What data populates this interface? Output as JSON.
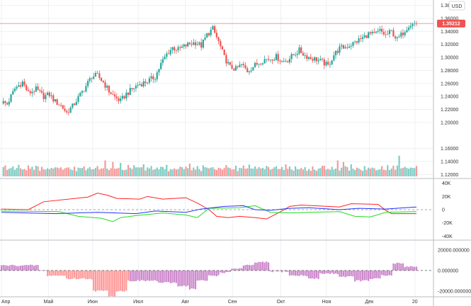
{
  "currency_label": "USD",
  "last_price_label": "1.35212",
  "colors": {
    "up": "#26a69a",
    "down": "#ef5350",
    "vol_up": "#7ecdc4",
    "vol_down": "#f59a9a",
    "cot_red": "#ff2222",
    "cot_green": "#22dd22",
    "cot_blue": "#2233ff",
    "net_pos": "#cc88cc",
    "net_neg": "#ff9999",
    "price_line": "#f28a8a",
    "grid": "#eef0f3"
  },
  "chart_data": [
    {
      "type": "candlestick",
      "panel": "price",
      "x_labels": [
        "Апр",
        "Май",
        "Июн",
        "Июл",
        "Авг",
        "Сен",
        "Окт",
        "Ноя",
        "Дек",
        "20"
      ],
      "y_ticks": [
        "1.38000",
        "1.36000",
        "1.34000",
        "1.32000",
        "1.30000",
        "1.28000",
        "1.26000",
        "1.24000",
        "1.22000",
        "1.20000",
        "1.16000",
        "1.14000",
        "1.12000"
      ],
      "ylim": [
        1.115,
        1.385
      ],
      "last_price": 1.35212,
      "close_anchors": [
        [
          0,
          1.232
        ],
        [
          3,
          1.228
        ],
        [
          7,
          1.252
        ],
        [
          11,
          1.262
        ],
        [
          14,
          1.245
        ],
        [
          18,
          1.251
        ],
        [
          22,
          1.24
        ],
        [
          25,
          1.243
        ],
        [
          28,
          1.232
        ],
        [
          31,
          1.226
        ],
        [
          34,
          1.215
        ],
        [
          37,
          1.225
        ],
        [
          40,
          1.238
        ],
        [
          44,
          1.256
        ],
        [
          47,
          1.271
        ],
        [
          50,
          1.272
        ],
        [
          53,
          1.262
        ],
        [
          56,
          1.248
        ],
        [
          59,
          1.239
        ],
        [
          62,
          1.233
        ],
        [
          65,
          1.244
        ],
        [
          68,
          1.251
        ],
        [
          71,
          1.258
        ],
        [
          74,
          1.261
        ],
        [
          77,
          1.265
        ],
        [
          80,
          1.27
        ],
        [
          83,
          1.29
        ],
        [
          86,
          1.305
        ],
        [
          89,
          1.315
        ],
        [
          92,
          1.312
        ],
        [
          95,
          1.317
        ],
        [
          98,
          1.321
        ],
        [
          101,
          1.323
        ],
        [
          104,
          1.318
        ],
        [
          107,
          1.335
        ],
        [
          110,
          1.344
        ],
        [
          113,
          1.324
        ],
        [
          116,
          1.3
        ],
        [
          119,
          1.285
        ],
        [
          122,
          1.282
        ],
        [
          125,
          1.289
        ],
        [
          128,
          1.279
        ],
        [
          131,
          1.286
        ],
        [
          134,
          1.292
        ],
        [
          137,
          1.297
        ],
        [
          140,
          1.298
        ],
        [
          143,
          1.301
        ],
        [
          146,
          1.294
        ],
        [
          149,
          1.296
        ],
        [
          152,
          1.304
        ],
        [
          155,
          1.311
        ],
        [
          158,
          1.303
        ],
        [
          161,
          1.299
        ],
        [
          164,
          1.297
        ],
        [
          167,
          1.293
        ],
        [
          170,
          1.287
        ],
        [
          173,
          1.304
        ],
        [
          176,
          1.314
        ],
        [
          179,
          1.316
        ],
        [
          182,
          1.32
        ],
        [
          185,
          1.325
        ],
        [
          188,
          1.33
        ],
        [
          191,
          1.336
        ],
        [
          194,
          1.335
        ],
        [
          197,
          1.341
        ],
        [
          200,
          1.334
        ],
        [
          203,
          1.34
        ],
        [
          206,
          1.327
        ],
        [
          209,
          1.338
        ],
        [
          212,
          1.35
        ],
        [
          215,
          1.352
        ]
      ]
    },
    {
      "type": "bar",
      "panel": "volume",
      "values_pattern": [
        0.55,
        0.48,
        0.62,
        0.4,
        0.5,
        0.45,
        0.58,
        0.52,
        0.43,
        0.6,
        0.47,
        0.53
      ],
      "spikes": [
        [
          54,
          1.0
        ],
        [
          58,
          0.9
        ],
        [
          62,
          0.85
        ],
        [
          98,
          0.8
        ],
        [
          148,
          0.75
        ],
        [
          175,
          1.0
        ],
        [
          178,
          0.9
        ],
        [
          207,
          1.3
        ],
        [
          210,
          0.6
        ]
      ]
    },
    {
      "type": "line",
      "panel": "cot",
      "y_ticks": [
        "40K",
        "20K",
        "0",
        "-20K",
        "-40K"
      ],
      "ylim": [
        -45000,
        45000
      ],
      "series": [
        {
          "key": "red",
          "points": [
            [
              0,
              1000
            ],
            [
              14,
              0
            ],
            [
              22,
              12000
            ],
            [
              45,
              19000
            ],
            [
              50,
              25000
            ],
            [
              55,
              22000
            ],
            [
              60,
              17000
            ],
            [
              72,
              16000
            ],
            [
              76,
              20000
            ],
            [
              84,
              16000
            ],
            [
              96,
              18000
            ],
            [
              102,
              10000
            ],
            [
              108,
              0
            ],
            [
              112,
              -10000
            ],
            [
              118,
              -12000
            ],
            [
              124,
              -10000
            ],
            [
              132,
              -12000
            ],
            [
              138,
              -14000
            ],
            [
              146,
              -2000
            ],
            [
              150,
              5000
            ],
            [
              156,
              7000
            ],
            [
              176,
              4000
            ],
            [
              182,
              9000
            ],
            [
              196,
              8000
            ],
            [
              200,
              -1000
            ],
            [
              203,
              -6000
            ],
            [
              216,
              -6000
            ]
          ]
        },
        {
          "key": "green",
          "points": [
            [
              0,
              -2000
            ],
            [
              30,
              -3000
            ],
            [
              40,
              -10000
            ],
            [
              52,
              -13000
            ],
            [
              58,
              -18000
            ],
            [
              62,
              -12000
            ],
            [
              70,
              -9000
            ],
            [
              84,
              -5000
            ],
            [
              96,
              -8000
            ],
            [
              102,
              -12000
            ],
            [
              108,
              2000
            ],
            [
              124,
              3000
            ],
            [
              132,
              6000
            ],
            [
              140,
              -4000
            ],
            [
              150,
              -5000
            ],
            [
              160,
              -4000
            ],
            [
              176,
              -3000
            ],
            [
              184,
              -10000
            ],
            [
              192,
              -11000
            ],
            [
              200,
              -4000
            ],
            [
              216,
              -3000
            ]
          ]
        },
        {
          "key": "blue",
          "points": [
            [
              0,
              -4000
            ],
            [
              28,
              -6000
            ],
            [
              50,
              -4000
            ],
            [
              70,
              -6000
            ],
            [
              80,
              -2000
            ],
            [
              96,
              -4000
            ],
            [
              104,
              1000
            ],
            [
              116,
              5000
            ],
            [
              126,
              6000
            ],
            [
              132,
              0
            ],
            [
              140,
              -1000
            ],
            [
              150,
              2000
            ],
            [
              160,
              3000
            ],
            [
              176,
              0
            ],
            [
              186,
              2000
            ],
            [
              200,
              1000
            ],
            [
              210,
              3000
            ],
            [
              216,
              4000
            ]
          ]
        }
      ]
    },
    {
      "type": "bar",
      "panel": "net",
      "y_ticks": [
        "20000.000000",
        "0.000000",
        "-20000.000000"
      ],
      "ylim": [
        -25000,
        29000
      ],
      "steps": [
        [
          0,
          5000
        ],
        [
          20,
          0
        ],
        [
          24,
          -5000
        ],
        [
          34,
          -8000
        ],
        [
          48,
          -20000
        ],
        [
          56,
          -25000
        ],
        [
          60,
          -20000
        ],
        [
          66,
          -10000
        ],
        [
          82,
          -12000
        ],
        [
          92,
          -15000
        ],
        [
          98,
          -18000
        ],
        [
          102,
          -10000
        ],
        [
          108,
          -5000
        ],
        [
          114,
          -2000
        ],
        [
          120,
          2000
        ],
        [
          126,
          5000
        ],
        [
          132,
          8000
        ],
        [
          140,
          -1000
        ],
        [
          150,
          -5000
        ],
        [
          160,
          -8000
        ],
        [
          166,
          -3000
        ],
        [
          176,
          -6000
        ],
        [
          184,
          -10000
        ],
        [
          192,
          -8000
        ],
        [
          198,
          -5000
        ],
        [
          204,
          7000
        ],
        [
          210,
          4000
        ]
      ]
    }
  ]
}
